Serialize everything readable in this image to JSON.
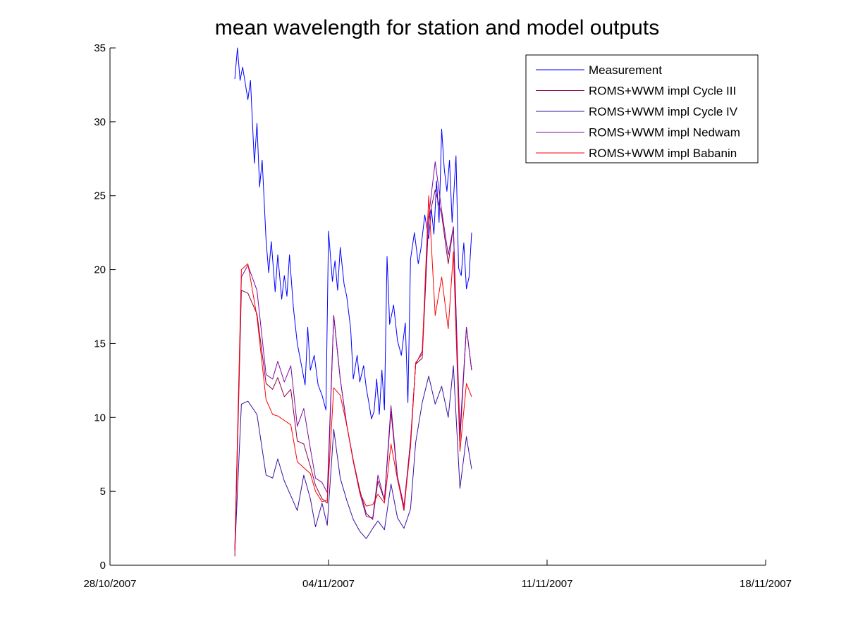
{
  "chart_data": {
    "type": "line",
    "title": "mean wavelength for station and model outputs",
    "xlabel": "",
    "ylabel": "",
    "xlim": [
      "2007-10-28",
      "2007-11-18"
    ],
    "ylim": [
      0,
      35
    ],
    "x_ticks": [
      "28/10/2007",
      "04/11/2007",
      "11/11/2007",
      "18/11/2007"
    ],
    "y_ticks": [
      0,
      5,
      10,
      15,
      20,
      25,
      30,
      35
    ],
    "grid": false,
    "legend_position": "top-right",
    "series": [
      {
        "name": "Measurement",
        "color": "#0000ff",
        "points": [
          [
            "2007-11-01 00:00",
            32.9
          ],
          [
            "2007-11-01 02:00",
            35.0
          ],
          [
            "2007-11-01 04:00",
            32.8
          ],
          [
            "2007-11-01 06:00",
            33.7
          ],
          [
            "2007-11-01 08:00",
            32.6
          ],
          [
            "2007-11-01 10:00",
            31.5
          ],
          [
            "2007-11-01 12:00",
            32.8
          ],
          [
            "2007-11-01 15:00",
            27.2
          ],
          [
            "2007-11-01 17:00",
            29.9
          ],
          [
            "2007-11-01 19:00",
            25.6
          ],
          [
            "2007-11-01 21:00",
            27.4
          ],
          [
            "2007-11-02 00:00",
            22.0
          ],
          [
            "2007-11-02 02:00",
            19.8
          ],
          [
            "2007-11-02 04:00",
            21.9
          ],
          [
            "2007-11-02 07:00",
            18.5
          ],
          [
            "2007-11-02 09:00",
            21.0
          ],
          [
            "2007-11-02 12:00",
            18.0
          ],
          [
            "2007-11-02 14:00",
            19.6
          ],
          [
            "2007-11-02 16:00",
            18.2
          ],
          [
            "2007-11-02 18:00",
            21.0
          ],
          [
            "2007-11-02 21:00",
            17.4
          ],
          [
            "2007-11-03 00:00",
            15.0
          ],
          [
            "2007-11-03 03:00",
            13.6
          ],
          [
            "2007-11-03 06:00",
            12.2
          ],
          [
            "2007-11-03 08:00",
            16.1
          ],
          [
            "2007-11-03 10:00",
            13.2
          ],
          [
            "2007-11-03 13:00",
            14.2
          ],
          [
            "2007-11-03 16:00",
            12.2
          ],
          [
            "2007-11-03 19:00",
            11.5
          ],
          [
            "2007-11-03 22:00",
            10.5
          ],
          [
            "2007-11-04 00:00",
            22.6
          ],
          [
            "2007-11-04 03:00",
            19.2
          ],
          [
            "2007-11-04 05:00",
            20.6
          ],
          [
            "2007-11-04 07:00",
            18.6
          ],
          [
            "2007-11-04 09:00",
            21.5
          ],
          [
            "2007-11-04 12:00",
            19.0
          ],
          [
            "2007-11-04 14:00",
            18.2
          ],
          [
            "2007-11-04 17:00",
            16.0
          ],
          [
            "2007-11-04 19:00",
            12.6
          ],
          [
            "2007-11-04 22:00",
            14.2
          ],
          [
            "2007-11-05 00:00",
            12.4
          ],
          [
            "2007-11-05 03:00",
            13.5
          ],
          [
            "2007-11-05 05:00",
            12.0
          ],
          [
            "2007-11-05 07:00",
            11.0
          ],
          [
            "2007-11-05 09:00",
            9.9
          ],
          [
            "2007-11-05 11:00",
            10.4
          ],
          [
            "2007-11-05 13:00",
            12.6
          ],
          [
            "2007-11-05 15:00",
            10.2
          ],
          [
            "2007-11-05 17:00",
            13.2
          ],
          [
            "2007-11-05 19:00",
            10.5
          ],
          [
            "2007-11-05 21:00",
            20.9
          ],
          [
            "2007-11-05 23:00",
            16.3
          ],
          [
            "2007-11-06 02:00",
            17.6
          ],
          [
            "2007-11-06 05:00",
            15.2
          ],
          [
            "2007-11-06 08:00",
            14.2
          ],
          [
            "2007-11-06 11:00",
            16.4
          ],
          [
            "2007-11-06 13:00",
            11.0
          ],
          [
            "2007-11-06 15:00",
            20.7
          ],
          [
            "2007-11-06 18:00",
            22.5
          ],
          [
            "2007-11-06 21:00",
            20.4
          ],
          [
            "2007-11-06 23:00",
            21.4
          ],
          [
            "2007-11-07 02:00",
            23.7
          ],
          [
            "2007-11-07 05:00",
            22.1
          ],
          [
            "2007-11-07 07:00",
            24.1
          ],
          [
            "2007-11-07 09:00",
            22.4
          ],
          [
            "2007-11-07 11:00",
            26.0
          ],
          [
            "2007-11-07 13:00",
            23.2
          ],
          [
            "2007-11-07 15:00",
            29.5
          ],
          [
            "2007-11-07 17:00",
            26.8
          ],
          [
            "2007-11-07 19:00",
            25.3
          ],
          [
            "2007-11-07 21:00",
            27.4
          ],
          [
            "2007-11-07 23:00",
            23.2
          ],
          [
            "2007-11-08 02:00",
            27.7
          ],
          [
            "2007-11-08 04:00",
            20.1
          ],
          [
            "2007-11-08 06:00",
            19.6
          ],
          [
            "2007-11-08 08:00",
            21.8
          ],
          [
            "2007-11-08 10:00",
            18.7
          ],
          [
            "2007-11-08 12:00",
            19.5
          ],
          [
            "2007-11-08 14:00",
            22.5
          ]
        ]
      },
      {
        "name": "ROMS+WWM impl Cycle III",
        "color": "#8a0040",
        "points": [
          [
            "2007-11-01 00:00",
            0.6
          ],
          [
            "2007-11-01 05:00",
            18.6
          ],
          [
            "2007-11-01 10:00",
            18.4
          ],
          [
            "2007-11-01 17:00",
            17.0
          ],
          [
            "2007-11-02 00:00",
            12.3
          ],
          [
            "2007-11-02 05:00",
            11.9
          ],
          [
            "2007-11-02 09:00",
            12.7
          ],
          [
            "2007-11-02 14:00",
            11.4
          ],
          [
            "2007-11-02 19:00",
            11.9
          ],
          [
            "2007-11-03 00:00",
            8.4
          ],
          [
            "2007-11-03 05:00",
            8.2
          ],
          [
            "2007-11-03 10:00",
            6.7
          ],
          [
            "2007-11-03 14:00",
            5.4
          ],
          [
            "2007-11-03 19:00",
            4.5
          ],
          [
            "2007-11-03 23:00",
            4.2
          ],
          [
            "2007-11-04 04:00",
            16.9
          ],
          [
            "2007-11-04 09:00",
            12.6
          ],
          [
            "2007-11-04 14:00",
            9.5
          ],
          [
            "2007-11-04 19:00",
            7.1
          ],
          [
            "2007-11-05 00:00",
            5.1
          ],
          [
            "2007-11-05 05:00",
            3.5
          ],
          [
            "2007-11-05 10:00",
            3.1
          ],
          [
            "2007-11-05 14:00",
            5.7
          ],
          [
            "2007-11-05 19:00",
            4.4
          ],
          [
            "2007-11-06 00:00",
            10.4
          ],
          [
            "2007-11-06 05:00",
            5.9
          ],
          [
            "2007-11-06 10:00",
            3.7
          ],
          [
            "2007-11-06 15:00",
            8.4
          ],
          [
            "2007-11-06 19:00",
            13.6
          ],
          [
            "2007-11-07 00:00",
            14.0
          ],
          [
            "2007-11-07 05:00",
            23.4
          ],
          [
            "2007-11-07 10:00",
            25.4
          ],
          [
            "2007-11-07 15:00",
            23.7
          ],
          [
            "2007-11-07 20:00",
            20.4
          ],
          [
            "2007-11-08 00:00",
            22.9
          ],
          [
            "2007-11-08 05:00",
            8.4
          ],
          [
            "2007-11-08 10:00",
            16.1
          ],
          [
            "2007-11-08 14:00",
            13.2
          ]
        ]
      },
      {
        "name": "ROMS+WWM impl Cycle IV",
        "color": "#3a10a0",
        "points": [
          [
            "2007-11-01 00:00",
            1.0
          ],
          [
            "2007-11-01 05:00",
            10.9
          ],
          [
            "2007-11-01 10:00",
            11.1
          ],
          [
            "2007-11-01 17:00",
            10.2
          ],
          [
            "2007-11-02 00:00",
            6.1
          ],
          [
            "2007-11-02 05:00",
            5.9
          ],
          [
            "2007-11-02 09:00",
            7.2
          ],
          [
            "2007-11-02 14:00",
            5.7
          ],
          [
            "2007-11-02 19:00",
            4.7
          ],
          [
            "2007-11-03 00:00",
            3.7
          ],
          [
            "2007-11-03 05:00",
            6.1
          ],
          [
            "2007-11-03 10:00",
            4.5
          ],
          [
            "2007-11-03 14:00",
            2.6
          ],
          [
            "2007-11-03 19:00",
            4.2
          ],
          [
            "2007-11-03 23:00",
            2.7
          ],
          [
            "2007-11-04 04:00",
            9.2
          ],
          [
            "2007-11-04 09:00",
            5.9
          ],
          [
            "2007-11-04 14:00",
            4.4
          ],
          [
            "2007-11-04 19:00",
            3.1
          ],
          [
            "2007-11-05 00:00",
            2.3
          ],
          [
            "2007-11-05 05:00",
            1.8
          ],
          [
            "2007-11-05 10:00",
            2.5
          ],
          [
            "2007-11-05 14:00",
            3.0
          ],
          [
            "2007-11-05 19:00",
            2.4
          ],
          [
            "2007-11-06 00:00",
            5.5
          ],
          [
            "2007-11-06 05:00",
            3.2
          ],
          [
            "2007-11-06 10:00",
            2.5
          ],
          [
            "2007-11-06 15:00",
            3.8
          ],
          [
            "2007-11-06 19:00",
            8.3
          ],
          [
            "2007-11-07 00:00",
            11.0
          ],
          [
            "2007-11-07 05:00",
            12.8
          ],
          [
            "2007-11-07 10:00",
            10.9
          ],
          [
            "2007-11-07 15:00",
            12.1
          ],
          [
            "2007-11-07 20:00",
            10.0
          ],
          [
            "2007-11-08 00:00",
            13.5
          ],
          [
            "2007-11-08 05:00",
            5.2
          ],
          [
            "2007-11-08 10:00",
            8.7
          ],
          [
            "2007-11-08 14:00",
            6.5
          ]
        ]
      },
      {
        "name": "ROMS+WWM impl Nedwam",
        "color": "#7a0aa0",
        "points": [
          [
            "2007-11-01 00:00",
            1.2
          ],
          [
            "2007-11-01 05:00",
            19.5
          ],
          [
            "2007-11-01 10:00",
            20.3
          ],
          [
            "2007-11-01 17:00",
            18.6
          ],
          [
            "2007-11-02 00:00",
            12.9
          ],
          [
            "2007-11-02 05:00",
            12.6
          ],
          [
            "2007-11-02 09:00",
            13.8
          ],
          [
            "2007-11-02 14:00",
            12.4
          ],
          [
            "2007-11-02 19:00",
            13.5
          ],
          [
            "2007-11-03 00:00",
            9.4
          ],
          [
            "2007-11-03 05:00",
            10.6
          ],
          [
            "2007-11-03 10:00",
            7.9
          ],
          [
            "2007-11-03 14:00",
            5.9
          ],
          [
            "2007-11-03 19:00",
            5.6
          ],
          [
            "2007-11-03 23:00",
            4.9
          ],
          [
            "2007-11-04 04:00",
            16.9
          ],
          [
            "2007-11-04 09:00",
            12.6
          ],
          [
            "2007-11-04 14:00",
            9.5
          ],
          [
            "2007-11-04 19:00",
            7.1
          ],
          [
            "2007-11-05 00:00",
            4.9
          ],
          [
            "2007-11-05 05:00",
            3.3
          ],
          [
            "2007-11-05 10:00",
            3.2
          ],
          [
            "2007-11-05 14:00",
            6.1
          ],
          [
            "2007-11-05 19:00",
            4.4
          ],
          [
            "2007-11-06 00:00",
            10.8
          ],
          [
            "2007-11-06 05:00",
            6.0
          ],
          [
            "2007-11-06 10:00",
            4.0
          ],
          [
            "2007-11-06 15:00",
            8.4
          ],
          [
            "2007-11-06 19:00",
            13.6
          ],
          [
            "2007-11-07 00:00",
            14.5
          ],
          [
            "2007-11-07 05:00",
            23.6
          ],
          [
            "2007-11-07 10:00",
            27.3
          ],
          [
            "2007-11-07 15:00",
            24.0
          ],
          [
            "2007-11-07 20:00",
            21.0
          ],
          [
            "2007-11-08 00:00",
            22.9
          ],
          [
            "2007-11-08 05:00",
            9.0
          ],
          [
            "2007-11-08 10:00",
            16.1
          ],
          [
            "2007-11-08 14:00",
            13.2
          ]
        ]
      },
      {
        "name": "ROMS+WWM impl Babanin",
        "color": "#ff0000",
        "points": [
          [
            "2007-11-01 00:00",
            1.0
          ],
          [
            "2007-11-01 05:00",
            20.0
          ],
          [
            "2007-11-01 10:00",
            20.4
          ],
          [
            "2007-11-01 17:00",
            16.8
          ],
          [
            "2007-11-02 00:00",
            11.2
          ],
          [
            "2007-11-02 05:00",
            10.2
          ],
          [
            "2007-11-02 09:00",
            10.1
          ],
          [
            "2007-11-02 14:00",
            9.8
          ],
          [
            "2007-11-02 19:00",
            9.5
          ],
          [
            "2007-11-03 00:00",
            7.0
          ],
          [
            "2007-11-03 05:00",
            6.6
          ],
          [
            "2007-11-03 10:00",
            6.2
          ],
          [
            "2007-11-03 14:00",
            5.0
          ],
          [
            "2007-11-03 19:00",
            4.3
          ],
          [
            "2007-11-03 23:00",
            4.4
          ],
          [
            "2007-11-04 04:00",
            12.0
          ],
          [
            "2007-11-04 09:00",
            11.5
          ],
          [
            "2007-11-04 14:00",
            9.5
          ],
          [
            "2007-11-04 19:00",
            7.0
          ],
          [
            "2007-11-05 00:00",
            4.9
          ],
          [
            "2007-11-05 05:00",
            4.0
          ],
          [
            "2007-11-05 10:00",
            4.1
          ],
          [
            "2007-11-05 14:00",
            4.8
          ],
          [
            "2007-11-05 19:00",
            4.2
          ],
          [
            "2007-11-06 00:00",
            8.2
          ],
          [
            "2007-11-06 05:00",
            5.8
          ],
          [
            "2007-11-06 10:00",
            3.8
          ],
          [
            "2007-11-06 15:00",
            8.0
          ],
          [
            "2007-11-06 19:00",
            13.7
          ],
          [
            "2007-11-07 00:00",
            14.3
          ],
          [
            "2007-11-07 05:00",
            25.0
          ],
          [
            "2007-11-07 10:00",
            16.9
          ],
          [
            "2007-11-07 15:00",
            19.5
          ],
          [
            "2007-11-07 20:00",
            16.0
          ],
          [
            "2007-11-08 00:00",
            21.2
          ],
          [
            "2007-11-08 05:00",
            7.7
          ],
          [
            "2007-11-08 10:00",
            12.3
          ],
          [
            "2007-11-08 14:00",
            11.4
          ]
        ]
      }
    ]
  }
}
